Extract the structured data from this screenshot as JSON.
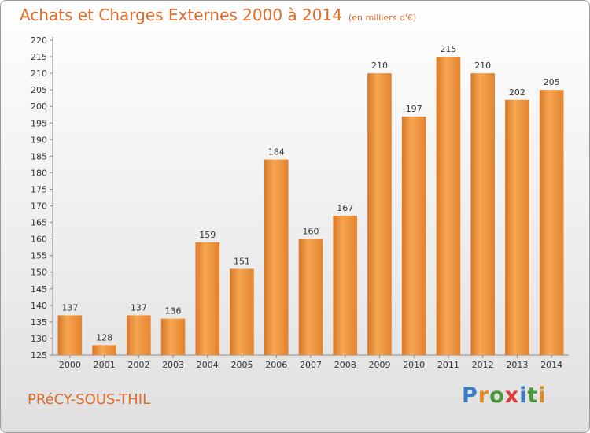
{
  "header": {
    "title": "Achats et Charges Externes 2000 à 2014",
    "subtitle": "(en milliers d'€)"
  },
  "footer": {
    "town": "PRéCY-SOUS-THIL",
    "logo": "Proxiti",
    "logo_colors": [
      "#3a7dc9",
      "#e08a2a",
      "#4a9a3a",
      "#e03a3a",
      "#3a7dc9",
      "#4a9a3a",
      "#e08a2a"
    ]
  },
  "chart_data": {
    "type": "bar",
    "categories": [
      "2000",
      "2001",
      "2002",
      "2003",
      "2004",
      "2005",
      "2006",
      "2007",
      "2008",
      "2009",
      "2010",
      "2011",
      "2012",
      "2013",
      "2014"
    ],
    "values": [
      137,
      128,
      137,
      136,
      159,
      151,
      184,
      160,
      167,
      210,
      197,
      215,
      210,
      202,
      205
    ],
    "ylim": [
      125,
      220
    ],
    "ytick_step": 5,
    "grid": false,
    "bar_color": "#f0953a",
    "title": "Achats et Charges Externes 2000 à 2014",
    "xlabel": "",
    "ylabel": ""
  }
}
